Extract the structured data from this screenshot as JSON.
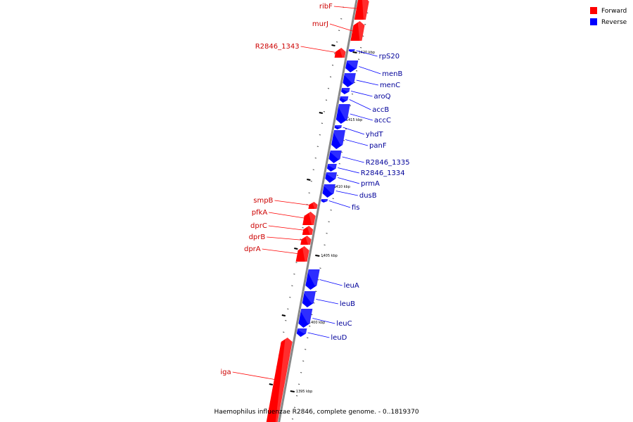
{
  "legend": {
    "items": [
      {
        "label": "Forward",
        "color": "#ff0000"
      },
      {
        "label": "Reverse",
        "color": "#0000ff"
      }
    ]
  },
  "caption": "Haemophilus influenzae R2846, complete genome. - 0..1819370",
  "colors": {
    "forward": "#ff0000",
    "forward_label": "#cc0000",
    "reverse": "#0000ff",
    "reverse_label": "#000099",
    "backbone": "#888888",
    "tick": "#000000"
  },
  "ticks": [
    {
      "label": "1420 kbp"
    },
    {
      "label": "1415 kbp"
    },
    {
      "label": "1410 kbp"
    },
    {
      "label": "1405 kbp"
    },
    {
      "label": "1400 kbp"
    },
    {
      "label": "1395 kbp"
    }
  ],
  "genes": [
    {
      "name": "ribF",
      "strand": "forward"
    },
    {
      "name": "murJ",
      "strand": "forward"
    },
    {
      "name": "R2846_1343",
      "strand": "forward"
    },
    {
      "name": "rpS20",
      "strand": "reverse"
    },
    {
      "name": "menB",
      "strand": "reverse"
    },
    {
      "name": "menC",
      "strand": "reverse"
    },
    {
      "name": "aroQ",
      "strand": "reverse"
    },
    {
      "name": "accB",
      "strand": "reverse"
    },
    {
      "name": "accC",
      "strand": "reverse"
    },
    {
      "name": "yhdT",
      "strand": "reverse"
    },
    {
      "name": "panF",
      "strand": "reverse"
    },
    {
      "name": "R2846_1335",
      "strand": "reverse"
    },
    {
      "name": "R2846_1334",
      "strand": "reverse"
    },
    {
      "name": "prmA",
      "strand": "reverse"
    },
    {
      "name": "dusB",
      "strand": "reverse"
    },
    {
      "name": "fis",
      "strand": "reverse"
    },
    {
      "name": "smpB",
      "strand": "forward"
    },
    {
      "name": "pfkA",
      "strand": "forward"
    },
    {
      "name": "dprC",
      "strand": "forward"
    },
    {
      "name": "dprB",
      "strand": "forward"
    },
    {
      "name": "dprA",
      "strand": "forward"
    },
    {
      "name": "leuA",
      "strand": "reverse"
    },
    {
      "name": "leuB",
      "strand": "reverse"
    },
    {
      "name": "leuC",
      "strand": "reverse"
    },
    {
      "name": "leuD",
      "strand": "reverse"
    },
    {
      "name": "iga",
      "strand": "forward"
    }
  ]
}
